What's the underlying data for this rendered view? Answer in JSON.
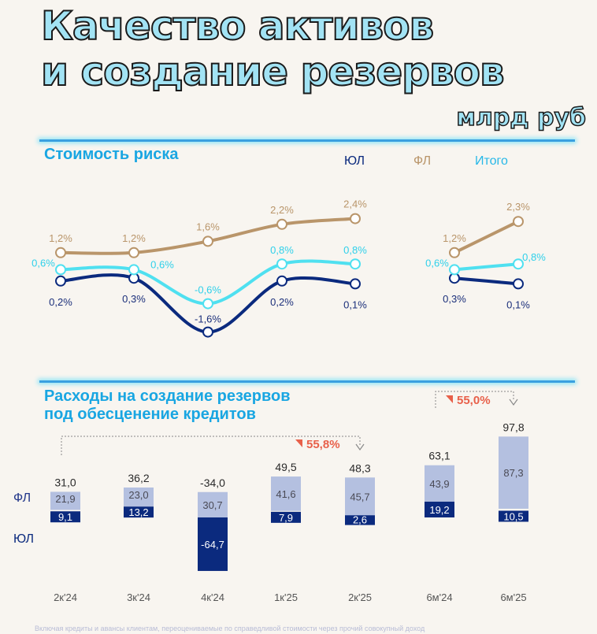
{
  "title_line1": "Качество активов",
  "title_line2": "и создание резервов",
  "unit": "млрд руб",
  "colors": {
    "yul": "#0b2a7e",
    "fl": "#b9956a",
    "total": "#4fe0f0",
    "fl_bar": "#b4c0e0",
    "accent": "#e8604a"
  },
  "footnote": "Включая кредиты и авансы клиентам, переоцениваемые по справедливой стоимости через прочий совокупный доход",
  "chart_data": [
    {
      "type": "line",
      "title": "Стоимость риска",
      "legend": [
        "ЮЛ",
        "ФЛ",
        "Итого"
      ],
      "legend_placement": "top-right",
      "groups": [
        {
          "categories": [
            "2к'24",
            "3к'24",
            "4к'24",
            "1к'25",
            "2к'25"
          ],
          "series": [
            {
              "name": "ЮЛ",
              "values": [
                0.2,
                0.3,
                -1.6,
                0.2,
                0.1
              ],
              "labels": [
                "0,2%",
                "0,3%",
                "-1,6%",
                "0,2%",
                "0,1%"
              ]
            },
            {
              "name": "ФЛ",
              "values": [
                1.2,
                1.2,
                1.6,
                2.2,
                2.4
              ],
              "labels": [
                "1,2%",
                "1,2%",
                "1,6%",
                "2,2%",
                "2,4%"
              ]
            },
            {
              "name": "Итого",
              "values": [
                0.6,
                0.6,
                -0.6,
                0.8,
                0.8
              ],
              "labels": [
                "0,6%",
                "0,6%",
                "-0,6%",
                "0,8%",
                "0,8%"
              ]
            }
          ]
        },
        {
          "categories": [
            "6м'24",
            "6м'25"
          ],
          "series": [
            {
              "name": "ЮЛ",
              "values": [
                0.3,
                0.1
              ],
              "labels": [
                "0,3%",
                "0,1%"
              ]
            },
            {
              "name": "ФЛ",
              "values": [
                1.2,
                2.3
              ],
              "labels": [
                "1,2%",
                "2,3%"
              ]
            },
            {
              "name": "Итого",
              "values": [
                0.6,
                0.8
              ],
              "labels": [
                "0,6%",
                "0,8%"
              ]
            }
          ]
        }
      ]
    },
    {
      "type": "bar",
      "stacked": true,
      "title": "Расходы на создание резервов под обесценение кредитов",
      "title_line1": "Расходы на создание резервов",
      "title_line2": "под обесценение кредитов",
      "categories": [
        "2к'24",
        "3к'24",
        "4к'24",
        "1к'25",
        "2к'25",
        "6м'24",
        "6м'25"
      ],
      "series": [
        {
          "name": "ЮЛ",
          "values": [
            9.1,
            13.2,
            -64.7,
            7.9,
            2.6,
            19.2,
            10.5
          ],
          "labels": [
            "9,1",
            "13,2",
            "-64,7",
            "7,9",
            "2,6",
            "19,2",
            "10,5"
          ]
        },
        {
          "name": "ФЛ",
          "values": [
            21.9,
            23.0,
            30.7,
            41.6,
            45.7,
            43.9,
            87.3
          ],
          "labels": [
            "21,9",
            "23,0",
            "30,7",
            "41,6",
            "45,7",
            "43,9",
            "87,3"
          ]
        }
      ],
      "totals": [
        "31,0",
        "36,2",
        "-34,0",
        "49,5",
        "48,3",
        "63,1",
        "97,8"
      ],
      "annotations": [
        {
          "from": "2к'24",
          "to": "2к'25",
          "text": "55,8%",
          "direction": "down"
        },
        {
          "from": "6м'24",
          "to": "6м'25",
          "text": "55,0%",
          "direction": "down"
        }
      ]
    }
  ]
}
